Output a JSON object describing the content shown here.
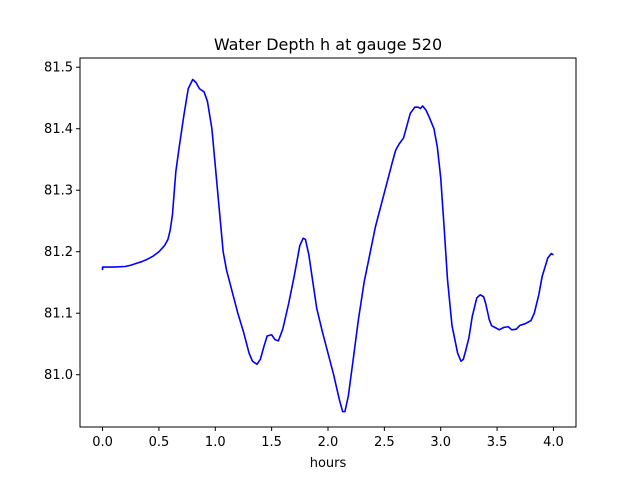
{
  "chart_data": {
    "type": "line",
    "title": "Water Depth h at gauge 520",
    "xlabel": "hours",
    "ylabel": "",
    "xlim": [
      -0.2,
      4.2
    ],
    "ylim": [
      80.915,
      81.515
    ],
    "xticks": [
      "0.0",
      "0.5",
      "1.0",
      "1.5",
      "2.0",
      "2.5",
      "3.0",
      "3.5",
      "4.0"
    ],
    "yticks": [
      "81.0",
      "81.1",
      "81.2",
      "81.3",
      "81.4",
      "81.5"
    ],
    "grid": false,
    "legend": "none",
    "series": [
      {
        "color": "#0000ff",
        "x": [
          0.0,
          0.0,
          0.1,
          0.2,
          0.25,
          0.3,
          0.35,
          0.4,
          0.45,
          0.5,
          0.55,
          0.58,
          0.6,
          0.62,
          0.65,
          0.68,
          0.72,
          0.76,
          0.8,
          0.83,
          0.86,
          0.9,
          0.93,
          0.97,
          1.0,
          1.03,
          1.07,
          1.1,
          1.15,
          1.2,
          1.25,
          1.3,
          1.33,
          1.37,
          1.4,
          1.43,
          1.46,
          1.5,
          1.53,
          1.56,
          1.6,
          1.65,
          1.7,
          1.75,
          1.78,
          1.8,
          1.83,
          1.87,
          1.9,
          1.95,
          2.0,
          2.05,
          2.1,
          2.13,
          2.15,
          2.18,
          2.22,
          2.27,
          2.32,
          2.37,
          2.42,
          2.47,
          2.52,
          2.57,
          2.6,
          2.63,
          2.67,
          2.7,
          2.73,
          2.77,
          2.8,
          2.82,
          2.84,
          2.87,
          2.9,
          2.94,
          2.97,
          3.0,
          3.03,
          3.06,
          3.1,
          3.15,
          3.18,
          3.2,
          3.22,
          3.25,
          3.28,
          3.32,
          3.35,
          3.38,
          3.4,
          3.43,
          3.45,
          3.48,
          3.52,
          3.56,
          3.6,
          3.63,
          3.67,
          3.7,
          3.75,
          3.8,
          3.83,
          3.87,
          3.9,
          3.95,
          3.98,
          4.0
        ],
        "y": [
          81.17,
          81.175,
          81.175,
          81.176,
          81.178,
          81.181,
          81.184,
          81.188,
          81.193,
          81.2,
          81.21,
          81.22,
          81.235,
          81.26,
          81.33,
          81.37,
          81.42,
          81.465,
          81.48,
          81.475,
          81.465,
          81.46,
          81.445,
          81.4,
          81.34,
          81.28,
          81.2,
          81.17,
          81.135,
          81.1,
          81.07,
          81.035,
          81.022,
          81.017,
          81.025,
          81.045,
          81.063,
          81.065,
          81.057,
          81.055,
          81.075,
          81.115,
          81.16,
          81.21,
          81.222,
          81.22,
          81.195,
          81.145,
          81.108,
          81.07,
          81.035,
          81.0,
          80.96,
          80.94,
          80.94,
          80.965,
          81.02,
          81.09,
          81.15,
          81.195,
          81.24,
          81.275,
          81.31,
          81.345,
          81.365,
          81.375,
          81.385,
          81.405,
          81.425,
          81.435,
          81.435,
          81.433,
          81.437,
          81.43,
          81.418,
          81.4,
          81.37,
          81.32,
          81.24,
          81.155,
          81.08,
          81.035,
          81.022,
          81.025,
          81.038,
          81.06,
          81.095,
          81.125,
          81.13,
          81.127,
          81.115,
          81.09,
          81.08,
          81.077,
          81.073,
          81.077,
          81.078,
          81.073,
          81.074,
          81.08,
          81.083,
          81.088,
          81.1,
          81.13,
          81.16,
          81.19,
          81.197,
          81.195
        ]
      }
    ]
  }
}
